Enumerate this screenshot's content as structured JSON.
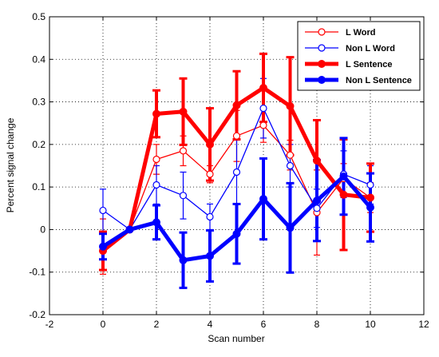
{
  "chart_data": {
    "type": "line",
    "xlabel": "Scan number",
    "ylabel": "Percent signal change",
    "xlim": [
      -2,
      12
    ],
    "ylim": [
      -0.2,
      0.5
    ],
    "xticks": [
      "-2",
      "0",
      "2",
      "4",
      "6",
      "8",
      "10",
      "12"
    ],
    "yticks": [
      "-0.2",
      "-0.1",
      "0",
      "0.1",
      "0.2",
      "0.3",
      "0.4",
      "0.5"
    ],
    "grid": "dotted",
    "legend_position": "top-right",
    "x": [
      0,
      1,
      2,
      3,
      4,
      5,
      6,
      7,
      8,
      9,
      10
    ],
    "series": [
      {
        "name": "L Word",
        "color": "#ff0000",
        "weight": "thin",
        "values": [
          -0.04,
          0.0,
          0.165,
          0.185,
          0.13,
          0.22,
          0.245,
          0.175,
          0.04,
          0.12,
          0.075
        ],
        "errors": [
          0.065,
          0.0,
          0.035,
          0.035,
          0.02,
          0.06,
          0.04,
          0.035,
          0.1,
          0.035,
          0.035
        ]
      },
      {
        "name": "Non L Word",
        "color": "#0000ff",
        "weight": "thin",
        "values": [
          0.045,
          0.0,
          0.105,
          0.08,
          0.03,
          0.135,
          0.285,
          0.15,
          0.05,
          0.13,
          0.105
        ],
        "errors": [
          0.05,
          0.0,
          0.045,
          0.055,
          0.03,
          0.075,
          0.07,
          0.05,
          0.045,
          0.055,
          0.045
        ]
      },
      {
        "name": "L  Sentence",
        "color": "#ff0000",
        "weight": "thick",
        "values": [
          -0.05,
          0.0,
          0.272,
          0.277,
          0.2,
          0.292,
          0.333,
          0.29,
          0.162,
          0.082,
          0.075
        ],
        "errors": [
          0.045,
          0.0,
          0.055,
          0.078,
          0.085,
          0.08,
          0.08,
          0.115,
          0.095,
          0.13,
          0.08
        ]
      },
      {
        "name": "Non L Sentence",
        "color": "#0000ff",
        "weight": "thick",
        "values": [
          -0.04,
          0.0,
          0.017,
          -0.072,
          -0.062,
          -0.01,
          0.072,
          0.004,
          0.068,
          0.125,
          0.052
        ],
        "errors": [
          0.03,
          0.0,
          0.04,
          0.065,
          0.06,
          0.07,
          0.095,
          0.105,
          0.095,
          0.09,
          0.08
        ]
      }
    ]
  }
}
